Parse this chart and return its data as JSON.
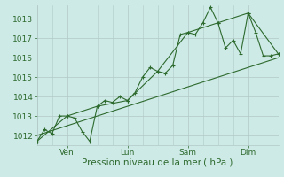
{
  "xlabel": "Pression niveau de la mer ( hPa )",
  "bg_color": "#ceeae7",
  "grid_color": "#b0c8c5",
  "line_color": "#2d6a2d",
  "ylim": [
    1011.5,
    1018.7
  ],
  "xlim": [
    0,
    96
  ],
  "yticks": [
    1012,
    1013,
    1014,
    1015,
    1016,
    1017,
    1018
  ],
  "xtick_labels": [
    "Ven",
    "Lun",
    "Sam",
    "Dim"
  ],
  "xtick_positions": [
    12,
    36,
    60,
    84
  ],
  "vline_positions": [
    12,
    36,
    60,
    84
  ],
  "hline_positions": [
    1012,
    1013,
    1014,
    1015,
    1016,
    1017,
    1018
  ],
  "line1_x": [
    0,
    3,
    6,
    9,
    12,
    15,
    18,
    21,
    24,
    27,
    30,
    33,
    36,
    39,
    42,
    45,
    48,
    51,
    54,
    57,
    60,
    63,
    66,
    69,
    72,
    75,
    78,
    81,
    84,
    87,
    90,
    93,
    96
  ],
  "line1_y": [
    1011.7,
    1012.3,
    1012.1,
    1013.0,
    1013.0,
    1012.9,
    1012.2,
    1011.7,
    1013.5,
    1013.8,
    1013.7,
    1014.0,
    1013.8,
    1014.2,
    1015.0,
    1015.5,
    1015.3,
    1015.2,
    1015.6,
    1017.2,
    1017.3,
    1017.2,
    1017.8,
    1018.6,
    1017.8,
    1016.5,
    1016.9,
    1016.2,
    1018.3,
    1017.3,
    1016.1,
    1016.1,
    1016.2
  ],
  "line2_x": [
    0,
    12,
    24,
    36,
    48,
    60,
    72,
    84,
    96
  ],
  "line2_y": [
    1011.7,
    1013.0,
    1013.5,
    1013.8,
    1015.3,
    1017.3,
    1017.8,
    1018.3,
    1016.2
  ],
  "trend_x": [
    0,
    96
  ],
  "trend_y": [
    1012.0,
    1016.0
  ]
}
